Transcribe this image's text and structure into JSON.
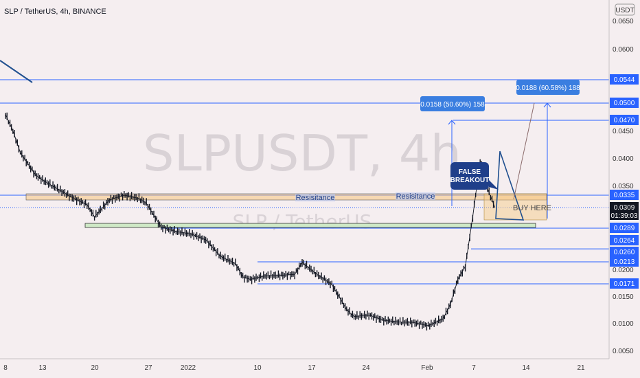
{
  "header": {
    "symbol": "SLP / TetherUS, 4h, BINANCE",
    "currency": "USDT"
  },
  "watermark": {
    "main": "SLPUSDT, 4h",
    "sub": "SLP / TetherUS"
  },
  "colors": {
    "line": "#2962ff",
    "candle": "#131722",
    "zone": "#f6c77f",
    "bg": "#f5eef0",
    "label_bg": "#2962ff"
  },
  "chart_data": {
    "type": "line",
    "title": "SLP / TetherUS, 4h, BINANCE",
    "x_ticks": [
      "8",
      "13",
      "20",
      "27",
      "2022",
      "10",
      "17",
      "24",
      "Feb",
      "7",
      "14",
      "21"
    ],
    "y_ticks": [
      "0.0650",
      "0.0600",
      "0.0450",
      "0.0400",
      "0.0350",
      "0.0200",
      "0.0150",
      "0.0100",
      "0.0050"
    ],
    "ylim": [
      0.0035,
      0.068
    ],
    "price_series": [
      [
        "Dec 8",
        0.048
      ],
      [
        "Dec 9",
        0.045
      ],
      [
        "Dec 10",
        0.041
      ],
      [
        "Dec 11",
        0.039
      ],
      [
        "Dec 12",
        0.037
      ],
      [
        "Dec 13",
        0.036
      ],
      [
        "Dec 15",
        0.0345
      ],
      [
        "Dec 17",
        0.033
      ],
      [
        "Dec 19",
        0.0315
      ],
      [
        "Dec 20",
        0.03
      ],
      [
        "Dec 22",
        0.0325
      ],
      [
        "Dec 24",
        0.0335
      ],
      [
        "Dec 26",
        0.0328
      ],
      [
        "Dec 27",
        0.0318
      ],
      [
        "Dec 29",
        0.029
      ],
      [
        "Dec 31",
        0.0285
      ],
      [
        "Jan 2",
        0.0282
      ],
      [
        "Jan 4",
        0.0275
      ],
      [
        "Jan 6",
        0.024
      ],
      [
        "Jan 8",
        0.021
      ],
      [
        "Jan 9",
        0.0185
      ],
      [
        "Jan 10",
        0.018
      ],
      [
        "Jan 12",
        0.0187
      ],
      [
        "Jan 14",
        0.0188
      ],
      [
        "Jan 16",
        0.019
      ],
      [
        "Jan 17",
        0.0212
      ],
      [
        "Jan 19",
        0.019
      ],
      [
        "Jan 21",
        0.017
      ],
      [
        "Jan 23",
        0.0125
      ],
      [
        "Jan 24",
        0.0112
      ],
      [
        "Jan 26",
        0.0115
      ],
      [
        "Jan 28",
        0.0105
      ],
      [
        "Jan 30",
        0.0102
      ],
      [
        "Feb 1",
        0.0101
      ],
      [
        "Feb 3",
        0.0095
      ],
      [
        "Feb 5",
        0.0108
      ],
      [
        "Feb 6",
        0.0135
      ],
      [
        "Feb 7",
        0.018
      ],
      [
        "Feb 8",
        0.0205
      ],
      [
        "Feb 9",
        0.03
      ],
      [
        "Feb 10",
        0.0395
      ],
      [
        "Feb 11",
        0.0345
      ],
      [
        "Feb 12",
        0.0309
      ]
    ],
    "price_labels": [
      {
        "value": "0.0544",
        "price": 0.0544
      },
      {
        "value": "0.0500",
        "price": 0.05
      },
      {
        "value": "0.0470",
        "price": 0.047
      },
      {
        "value": "0.0335",
        "price": 0.0335
      },
      {
        "value": "0.0309",
        "price": 0.0309,
        "countdown": "01:39:03"
      },
      {
        "value": "0.0289",
        "price": 0.0289
      },
      {
        "value": "0.0264",
        "price": 0.0264
      },
      {
        "value": "0.0260",
        "price": 0.026
      },
      {
        "value": "0.0213",
        "price": 0.0213
      },
      {
        "value": "0.0171",
        "price": 0.0171
      }
    ],
    "annotations": {
      "resistance": "Resisitance",
      "false_breakout": [
        "FALSE",
        "BREAKOUT"
      ],
      "buy_here": "BUY HERE",
      "target1": "0.0158 (50.60%) 158",
      "target2": "0.0188 (60.58%) 188"
    }
  }
}
